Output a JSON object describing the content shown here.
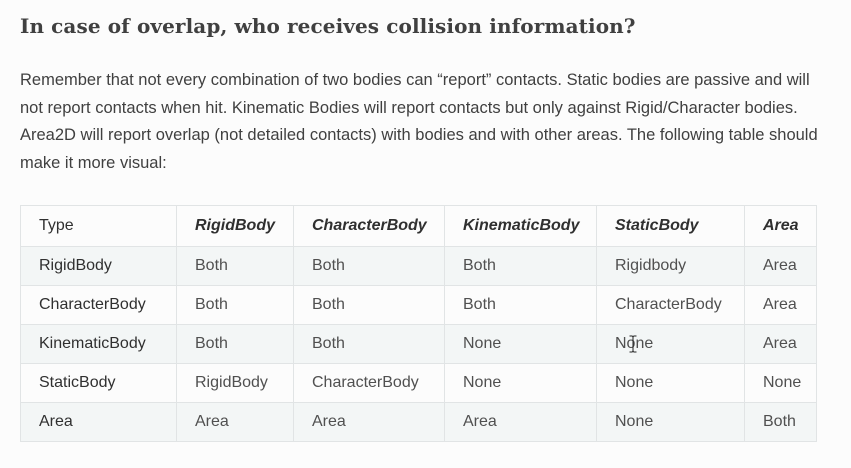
{
  "heading": "In case of overlap, who receives collision information?",
  "paragraph": "Remember that not every combination of two bodies can “report” contacts. Static bodies are passive and will not report contacts when hit. Kinematic Bodies will report contacts but only against Rigid/Character bodies. Area2D will report overlap (not detailed contacts) with bodies and with other areas. The following table should make it more visual:",
  "table": {
    "headers": [
      "Type",
      "RigidBody",
      "CharacterBody",
      "KinematicBody",
      "StaticBody",
      "Area"
    ],
    "rows": [
      [
        "RigidBody",
        "Both",
        "Both",
        "Both",
        "Rigidbody",
        "Area"
      ],
      [
        "CharacterBody",
        "Both",
        "Both",
        "Both",
        "CharacterBody",
        "Area"
      ],
      [
        "KinematicBody",
        "Both",
        "Both",
        "None",
        "None",
        "Area"
      ],
      [
        "StaticBody",
        "RigidBody",
        "CharacterBody",
        "None",
        "None",
        "None"
      ],
      [
        "Area",
        "Area",
        "Area",
        "Area",
        "None",
        "Both"
      ]
    ]
  },
  "cursor": "text-cursor-icon"
}
